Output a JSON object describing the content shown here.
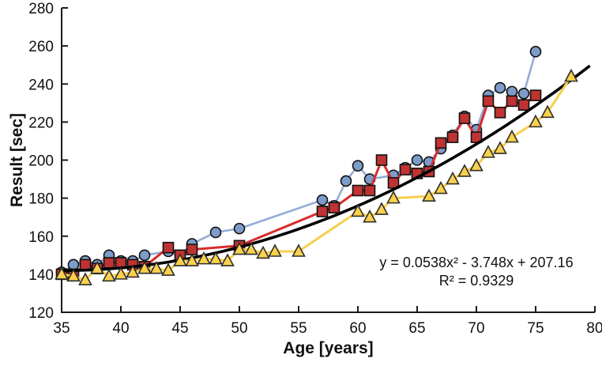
{
  "chart_data": {
    "type": "scatter",
    "title": "",
    "xlabel": "Age [years]",
    "ylabel": "Result [sec]",
    "xlim": [
      35,
      80
    ],
    "ylim": [
      120,
      280
    ],
    "xticks": [
      35,
      40,
      45,
      50,
      55,
      60,
      65,
      70,
      75,
      80
    ],
    "yticks": [
      120,
      140,
      160,
      180,
      200,
      220,
      240,
      260,
      280
    ],
    "grid": false,
    "legend_position": "none",
    "annotation": {
      "equation": "y = 0.0538x² - 3.748x + 207.16",
      "r_squared": "R² = 0.9329"
    },
    "trendline": {
      "kind": "polynomial",
      "degree": 2,
      "coefficients": {
        "a": 0.0538,
        "b": -3.748,
        "c": 207.16
      },
      "x_start": 35,
      "x_end": 79.6,
      "color": "#000000"
    },
    "series": [
      {
        "name": "blue-circles",
        "marker": "circle",
        "line_color": "#93acd7",
        "marker_fill": "#7e9cc9",
        "marker_edge": "#111111",
        "points": [
          [
            35,
            141
          ],
          [
            36,
            145
          ],
          [
            37,
            147
          ],
          [
            38,
            145
          ],
          [
            39,
            150
          ],
          [
            40,
            147
          ],
          [
            41,
            147
          ],
          [
            42,
            150
          ],
          [
            44,
            152
          ],
          [
            45,
            150
          ],
          [
            46,
            156
          ],
          [
            48,
            162
          ],
          [
            50,
            164
          ],
          [
            57,
            179
          ],
          [
            58,
            176
          ],
          [
            59,
            189
          ],
          [
            60,
            197
          ],
          [
            61,
            190
          ],
          [
            63,
            192
          ],
          [
            64,
            196
          ],
          [
            65,
            200
          ],
          [
            66,
            199
          ],
          [
            67,
            206
          ],
          [
            68,
            213
          ],
          [
            69,
            223
          ],
          [
            70,
            216
          ],
          [
            71,
            234
          ],
          [
            72,
            238
          ],
          [
            73,
            236
          ],
          [
            74,
            235
          ],
          [
            75,
            257
          ]
        ]
      },
      {
        "name": "red-squares",
        "marker": "square",
        "line_color": "#d92b2b",
        "marker_fill": "#bf3333",
        "marker_edge": "#111111",
        "points": [
          [
            35,
            140
          ],
          [
            36,
            140
          ],
          [
            37,
            145
          ],
          [
            38,
            143
          ],
          [
            39,
            146
          ],
          [
            40,
            146
          ],
          [
            41,
            145
          ],
          [
            42,
            144
          ],
          [
            44,
            154
          ],
          [
            45,
            150
          ],
          [
            46,
            153
          ],
          [
            50,
            155
          ],
          [
            57,
            173
          ],
          [
            58,
            175
          ],
          [
            60,
            184
          ],
          [
            61,
            184
          ],
          [
            62,
            200
          ],
          [
            63,
            188
          ],
          [
            64,
            195
          ],
          [
            65,
            193
          ],
          [
            66,
            194
          ],
          [
            67,
            209
          ],
          [
            68,
            212
          ],
          [
            69,
            222
          ],
          [
            70,
            212
          ],
          [
            71,
            231
          ],
          [
            72,
            225
          ],
          [
            73,
            231
          ],
          [
            74,
            229
          ],
          [
            75,
            234
          ]
        ]
      },
      {
        "name": "yellow-triangles",
        "marker": "triangle",
        "line_color": "#f7cf4e",
        "marker_fill": "#fbd14b",
        "marker_edge": "#2e2e2e",
        "points": [
          [
            35,
            140
          ],
          [
            36,
            139
          ],
          [
            37,
            137
          ],
          [
            38,
            143
          ],
          [
            39,
            139
          ],
          [
            40,
            140
          ],
          [
            41,
            141
          ],
          [
            42,
            143
          ],
          [
            43,
            143
          ],
          [
            44,
            142
          ],
          [
            45,
            147
          ],
          [
            46,
            147
          ],
          [
            47,
            148
          ],
          [
            48,
            148
          ],
          [
            49,
            147
          ],
          [
            50,
            153
          ],
          [
            51,
            153
          ],
          [
            52,
            151
          ],
          [
            53,
            152
          ],
          [
            55,
            152
          ],
          [
            60,
            173
          ],
          [
            61,
            170
          ],
          [
            62,
            174
          ],
          [
            63,
            180
          ],
          [
            66,
            181
          ],
          [
            67,
            185
          ],
          [
            68,
            190
          ],
          [
            69,
            194
          ],
          [
            70,
            197
          ],
          [
            71,
            204
          ],
          [
            72,
            206
          ],
          [
            73,
            212
          ],
          [
            75,
            220
          ],
          [
            76,
            225
          ],
          [
            78,
            244
          ]
        ]
      }
    ]
  }
}
